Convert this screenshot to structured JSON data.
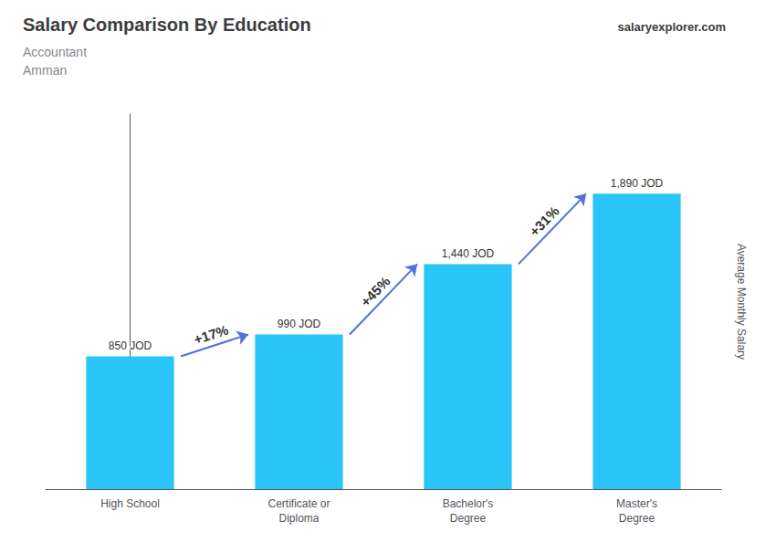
{
  "chart_data": {
    "type": "bar",
    "title": "Salary Comparison By Education",
    "subtitle": [
      "Accountant",
      "Amman"
    ],
    "ylabel": "Average Monthly Salary",
    "categories": [
      "High School",
      "Certificate or\nDiploma",
      "Bachelor's\nDegree",
      "Master's\nDegree"
    ],
    "values": [
      850,
      990,
      1440,
      1890
    ],
    "value_labels": [
      "850 JOD",
      "990 JOD",
      "1,440 JOD",
      "1,890 JOD"
    ],
    "data_labels": true,
    "color": "#29c5f6",
    "ylim": [
      0,
      2400
    ],
    "grid": false,
    "tick_labels": "x",
    "annotations": [
      {
        "text": "+17%",
        "from": "High School",
        "to": "Certificate or\nDiploma"
      },
      {
        "text": "+45%",
        "from": "Certificate or\nDiploma",
        "to": "Bachelor's\nDegree"
      },
      {
        "text": "+31%",
        "from": "Bachelor's\nDegree",
        "to": "Master's\nDegree"
      },
      {
        "text": "salaryexplorer.com"
      }
    ]
  }
}
